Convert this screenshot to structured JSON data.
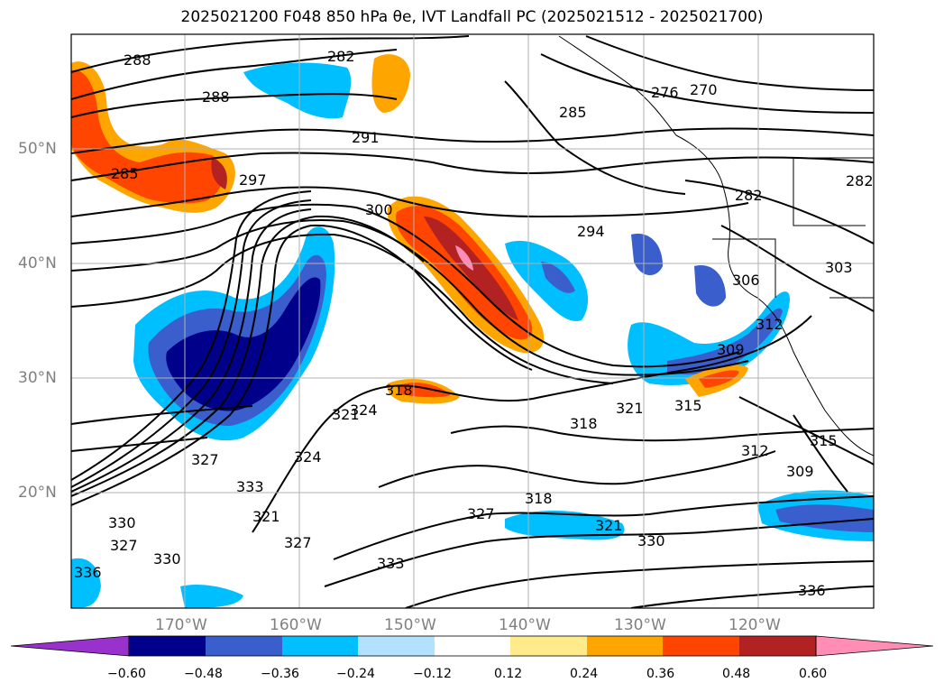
{
  "title": "2025021200 F048 850 hPa θe, IVT Landfall PC (2025021512 - 2025021700)",
  "axes": {
    "lat_ticks": [
      "50°N",
      "40°N",
      "30°N",
      "20°N"
    ],
    "lon_ticks": [
      "170°W",
      "160°W",
      "150°W",
      "140°W",
      "130°W",
      "120°W"
    ]
  },
  "colorbar": {
    "tick_labels": [
      "−0.60",
      "−0.48",
      "−0.36",
      "−0.24",
      "−0.12",
      "0.12",
      "0.24",
      "0.36",
      "0.48",
      "0.60"
    ],
    "colors": [
      "#9932cc",
      "#00008b",
      "#3a5fcd",
      "#00bfff",
      "#b2e2ff",
      "#ffffff",
      "#ffeb8a",
      "#ffa500",
      "#ff4500",
      "#b22222",
      "#ff8db4"
    ]
  },
  "contour_labels": [
    "288",
    "288",
    "282",
    "285",
    "291",
    "297",
    "300",
    "294",
    "285",
    "276",
    "270",
    "282",
    "282",
    "303",
    "306",
    "312",
    "309",
    "315",
    "318",
    "321",
    "318",
    "324",
    "321",
    "327",
    "333",
    "324",
    "336",
    "321",
    "327",
    "330",
    "330",
    "333",
    "312",
    "315",
    "309",
    "318",
    "327",
    "321",
    "330",
    "336",
    "327"
  ],
  "chart_data": {
    "type": "map",
    "title": "2025021200 F048 850 hPa θe, IVT Landfall PC (2025021512 - 2025021700)",
    "lon_range_deg": [
      -180,
      -110
    ],
    "lat_range_deg": [
      10,
      60
    ],
    "contoured_field": "850 hPa θe (K)",
    "shaded_field": "IVT Landfall PC",
    "shading_levels": [
      -0.6,
      -0.48,
      -0.36,
      -0.24,
      -0.12,
      0.12,
      0.24,
      0.36,
      0.48,
      0.6
    ],
    "grid": true
  }
}
